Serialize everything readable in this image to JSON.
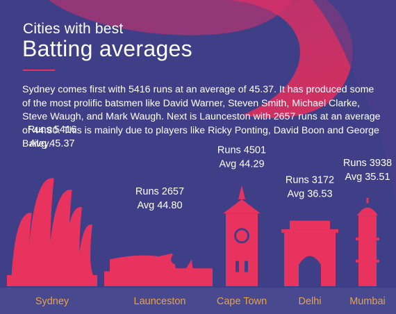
{
  "header": {
    "subtitle": "Cities with best",
    "title": "Batting averages"
  },
  "description": "Sydney comes first with 5416 runs at an average of 45.37. It has produced some of the most prolific batsmen like David Warner, Steven Smith, Michael Clarke, Steve Waugh, and Mark Waugh. Next is Launceston with 2657 runs at an average of 44.80. This is mainly due to players like Ricky Ponting, David Boon and George Bailey.",
  "colors": {
    "background": "#3e3f86",
    "accent": "#e8335e",
    "city_label": "#e8a24a",
    "text": "#ffffff"
  },
  "chart_data": {
    "type": "bar",
    "categories": [
      "Sydney",
      "Launceston",
      "Cape Town",
      "Delhi",
      "Mumbai"
    ],
    "series": [
      {
        "name": "Runs",
        "values": [
          5416,
          2657,
          4501,
          3172,
          3938
        ]
      },
      {
        "name": "Avg",
        "values": [
          45.37,
          44.8,
          44.29,
          36.53,
          35.51
        ]
      }
    ],
    "data_labels": [
      {
        "runs": "Runs 5416",
        "avg": "Avg 45.37",
        "landmark": "opera-house-icon"
      },
      {
        "runs": "Runs 2657",
        "avg": "Avg 44.80",
        "landmark": "launceston-skyline-icon"
      },
      {
        "runs": "Runs 4501",
        "avg": "Avg 44.29",
        "landmark": "clock-tower-icon"
      },
      {
        "runs": "Runs 3172",
        "avg": "Avg 36.53",
        "landmark": "india-gate-icon"
      },
      {
        "runs": "Runs 3938",
        "avg": "Avg 35.51",
        "landmark": "minaret-tower-icon"
      }
    ]
  }
}
